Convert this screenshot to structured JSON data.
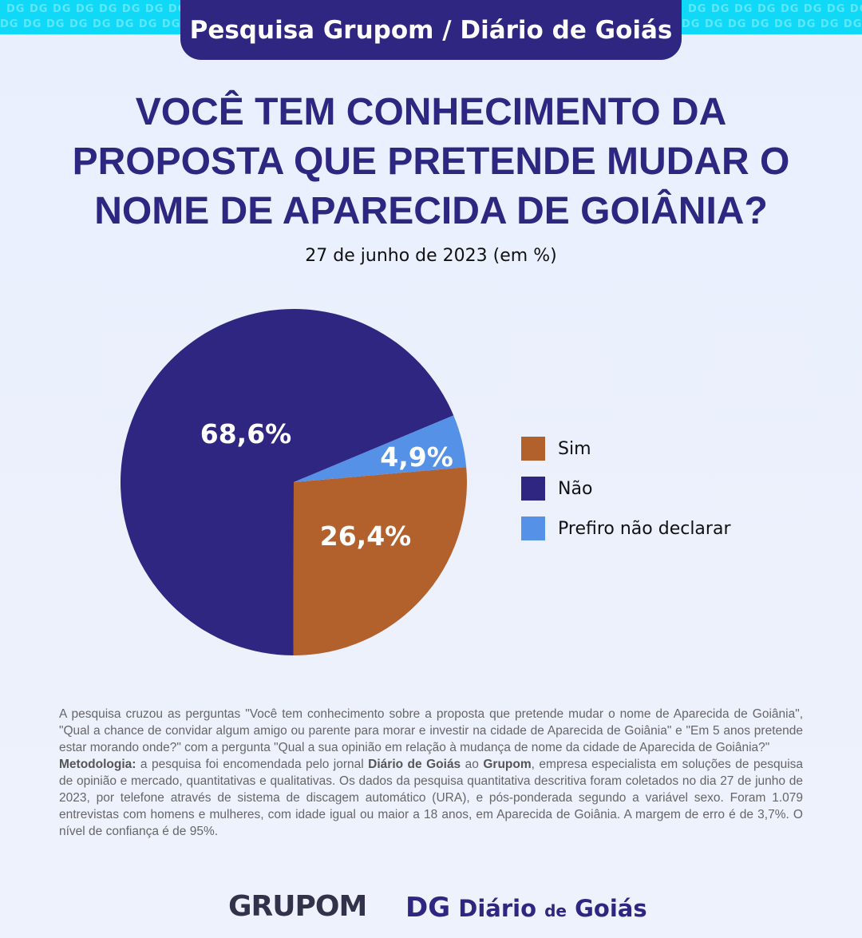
{
  "header": {
    "pattern": "DG",
    "title": "Pesquisa Grupom / Diário de Goiás"
  },
  "title_lines": [
    "VOCÊ TEM CONHECIMENTO DA",
    "PROPOSTA QUE PRETENDE MUDAR O",
    "NOME DE APARECIDA DE GOIÂNIA?"
  ],
  "subtitle": "27 de junho de 2023 (em %)",
  "chart_data": {
    "type": "pie",
    "title": "VOCÊ TEM CONHECIMENTO DA PROPOSTA QUE PRETENDE MUDAR O NOME DE APARECIDA DE GOIÂNIA?",
    "legend_position": "right",
    "slices": [
      {
        "label": "Sim",
        "value": 26.4,
        "display": "26,4%",
        "color": "#b2602c"
      },
      {
        "label": "Não",
        "value": 68.6,
        "display": "68,6%",
        "color": "#2e2680"
      },
      {
        "label": "Prefiro não declarar",
        "value": 4.9,
        "display": "4,9%",
        "color": "#5591e6"
      }
    ]
  },
  "note": {
    "intro": "A pesquisa cruzou as perguntas \"Você tem conhecimento sobre a proposta que pretende mudar o nome de Aparecida de Goiânia\", \"Qual a chance de convidar algum amigo ou parente para morar e investir na cidade de Aparecida de Goiânia\" e \"Em 5 anos pretende estar morando onde?\" com a pergunta \"Qual a sua opinião em relação à mudança de nome da cidade de Aparecida de Goiânia?\"",
    "method_label": "Metodologia:",
    "m1": " a pesquisa foi encomendada pelo jornal ",
    "m_dg": "Diário de Goiás",
    "m2": " ao ",
    "m_grupom": "Grupom",
    "m3": ", empresa especialista em soluções de pesquisa de opinião e mercado, quantitativas e qualitativas. Os dados da pesquisa quantitativa descritiva foram coletados no dia 27 de junho de 2023, por telefone através de sistema de discagem automático (URA), e pós-ponderada segundo a variável sexo. Foram 1.079 entrevistas com homens e mulheres, com idade igual ou maior a 18 anos, em Aparecida de Goiânia. A margem de erro é de 3,7%. O nível de confiança é de 95%."
  },
  "logos": {
    "grupom": "GRUPOM",
    "dg_mark": "DG",
    "dg_name1": "Diário",
    "dg_de": "de",
    "dg_name2": "Goiás"
  }
}
